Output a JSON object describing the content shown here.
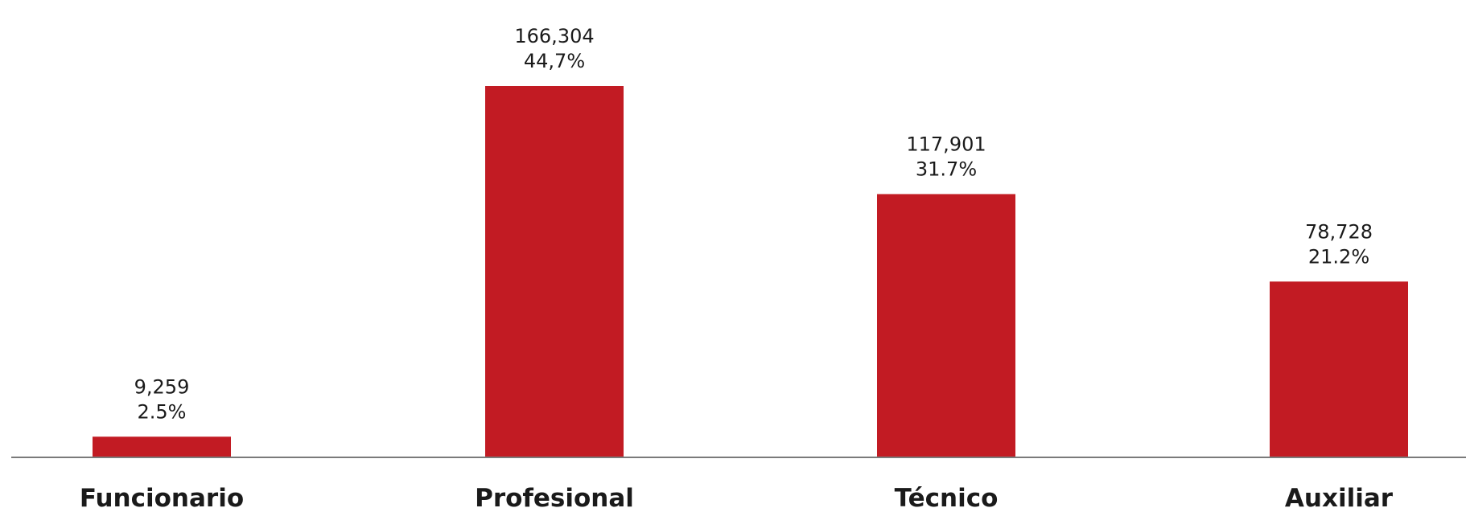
{
  "chart_data": {
    "type": "bar",
    "title": "",
    "xlabel": "",
    "ylabel": "",
    "categories": [
      "Funcionario",
      "Profesional",
      "Técnico",
      "Auxiliar"
    ],
    "values": [
      9259,
      166304,
      117901,
      78728
    ],
    "value_labels": [
      "9,259",
      "166,304",
      "117,901",
      "78,728"
    ],
    "percent_labels": [
      "2.5%",
      "44,7%",
      "31.7%",
      "21.2%"
    ],
    "ylim": [
      0,
      166304
    ],
    "grid": false,
    "legend": "none",
    "bar_color": "#c21b23",
    "axis_color": "#7a7a7a"
  }
}
